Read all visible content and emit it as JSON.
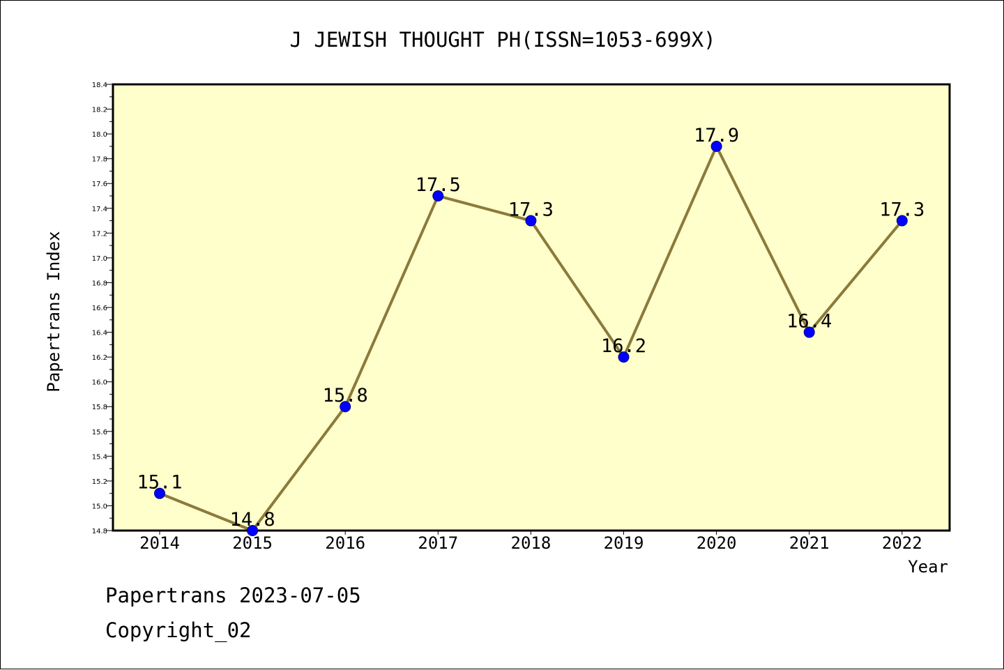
{
  "colors": {
    "plot_background": "#ffffcc",
    "line": "#8b7a3a",
    "marker_fill": "#0000ff",
    "marker_edge": "#000080",
    "axis": "#000000"
  },
  "footer": {
    "line1": "Papertrans 2023-07-05",
    "line2": "Copyright_02"
  },
  "chart_data": {
    "type": "line",
    "title": "J JEWISH THOUGHT PH(ISSN=1053-699X)",
    "xlabel": "Year",
    "ylabel": "Papertrans Index",
    "categories": [
      "2014",
      "2015",
      "2016",
      "2017",
      "2018",
      "2019",
      "2020",
      "2021",
      "2022"
    ],
    "series": [
      {
        "values": [
          15.1,
          14.8,
          15.8,
          17.5,
          17.3,
          16.2,
          17.9,
          16.4,
          17.3
        ],
        "data_labels": [
          "15.1",
          "14.8",
          "15.8",
          "17.5",
          "17.3",
          "16.2",
          "17.9",
          "16.4",
          "17.3"
        ]
      }
    ],
    "ylim": [
      14.8,
      18.4
    ],
    "yticks": [
      "14.8",
      "15.0",
      "15.2",
      "15.4",
      "15.6",
      "15.8",
      "16.0",
      "16.2",
      "16.4",
      "16.6",
      "16.8",
      "17.0",
      "17.2",
      "17.4",
      "17.6",
      "17.8",
      "18.0",
      "18.2",
      "18.4"
    ],
    "grid": false,
    "legend": "none"
  }
}
